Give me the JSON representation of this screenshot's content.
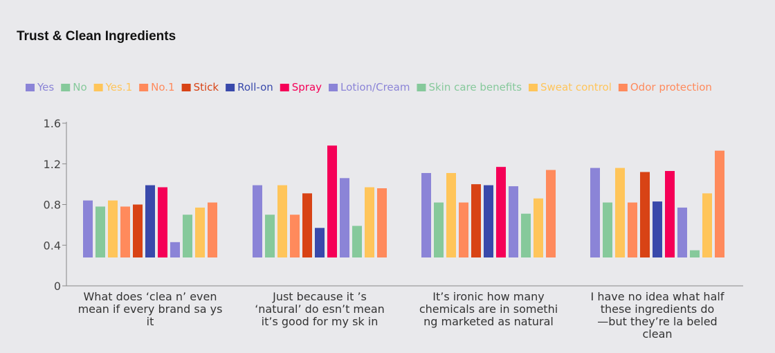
{
  "chart_data": {
    "type": "bar",
    "title": "Trust & Clean Ingredients",
    "xlabel": "",
    "ylabel": "",
    "ylim": [
      0,
      1.6
    ],
    "y_ticks": [
      "0",
      "0.4",
      "0.8",
      "1.2",
      "1.6"
    ],
    "y_tick_values": [
      0,
      0.4,
      0.8,
      1.2,
      1.6
    ],
    "legend_position": "top",
    "grid": false,
    "categories": [
      "What does ‘clea n’ even mean if every brand sa ys it",
      "Just because it ’s ‘natural’ do esn’t mean it’s good for my sk in",
      "It’s ironic how many chemicals are in somethi ng marketed as natural",
      "I have no idea what half these ingredients do —but they’re la beled clean"
    ],
    "category_lines": [
      [
        "What does ‘clea n’ even",
        "mean if every brand sa ys",
        "it"
      ],
      [
        "Just because it ’s",
        "‘natural’ do esn’t mean",
        "it’s good for my sk in"
      ],
      [
        "It’s ironic how many",
        "chemicals are in somethi",
        "ng marketed as natural"
      ],
      [
        "I have no idea what half",
        "these ingredients do",
        "—but they’re la beled",
        "clean"
      ]
    ],
    "series": [
      {
        "name": "Yes",
        "color": "#8b84d7",
        "values": [
          0.84,
          0.99,
          1.11,
          1.16
        ]
      },
      {
        "name": "No",
        "color": "#86c99b",
        "values": [
          0.78,
          0.7,
          0.82,
          0.82
        ]
      },
      {
        "name": "Yes.1",
        "color": "#ffc55a",
        "values": [
          0.84,
          0.99,
          1.11,
          1.16
        ]
      },
      {
        "name": "No.1",
        "color": "#ff8a5c",
        "values": [
          0.78,
          0.7,
          0.82,
          0.82
        ]
      },
      {
        "name": "Stick",
        "color": "#d84315",
        "values": [
          0.8,
          0.91,
          1.0,
          1.12
        ]
      },
      {
        "name": "Roll-on",
        "color": "#3949ab",
        "values": [
          0.99,
          0.57,
          0.99,
          0.83
        ]
      },
      {
        "name": "Spray",
        "color": "#f50057",
        "values": [
          0.97,
          1.38,
          1.17,
          1.13
        ]
      },
      {
        "name": "Lotion/Cream",
        "color": "#8b84d7",
        "values": [
          0.43,
          1.06,
          0.98,
          0.77
        ]
      },
      {
        "name": "Skin care benefits",
        "color": "#86c99b",
        "values": [
          0.7,
          0.59,
          0.71,
          0.35
        ]
      },
      {
        "name": "Sweat control",
        "color": "#ffc55a",
        "values": [
          0.77,
          0.97,
          0.86,
          0.91
        ]
      },
      {
        "name": "Odor protection",
        "color": "#ff8a5c",
        "values": [
          0.82,
          0.96,
          1.14,
          1.33
        ]
      }
    ]
  }
}
